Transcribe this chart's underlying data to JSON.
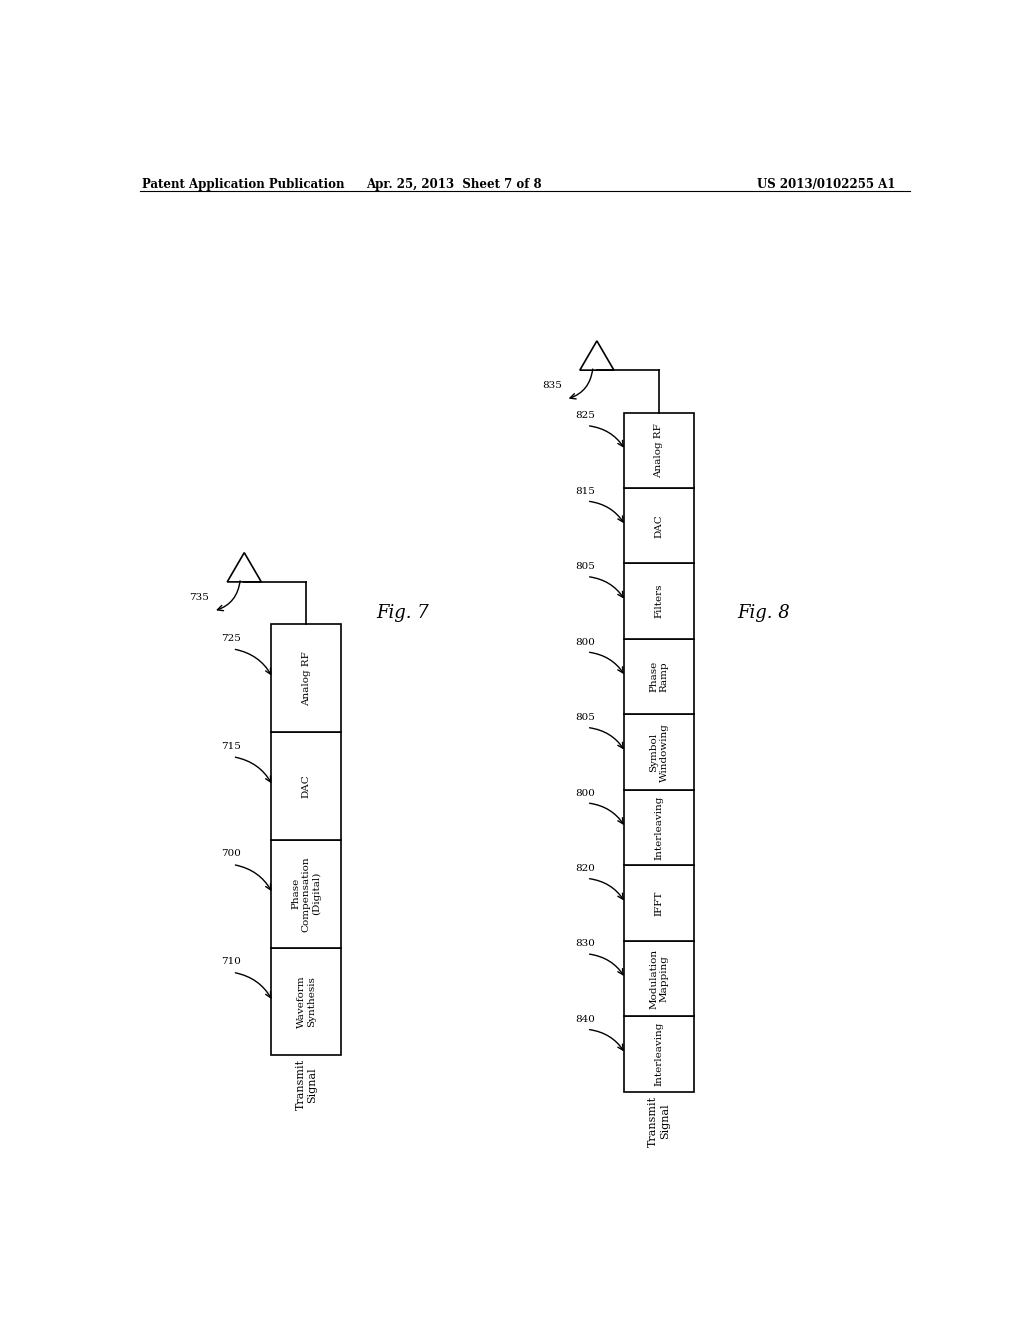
{
  "header_left": "Patent Application Publication",
  "header_center": "Apr. 25, 2013  Sheet 7 of 8",
  "header_right": "US 2013/0102255 A1",
  "fig7_title": "Fig. 7",
  "fig8_title": "Fig. 8",
  "fig7_boxes": [
    {
      "label": "Waveform\nSynthesis",
      "num": "710"
    },
    {
      "label": "Phase\nCompensation\n(Digital)",
      "num": "700"
    },
    {
      "label": "DAC",
      "num": "715"
    },
    {
      "label": "Analog RF",
      "num": "725"
    }
  ],
  "fig7_bottom_label": "Transmit\nSignal",
  "fig7_antenna_num": "735",
  "fig8_boxes": [
    {
      "label": "Interleaving",
      "num": "840"
    },
    {
      "label": "Modulation\nMapping",
      "num": "830"
    },
    {
      "label": "IFFT",
      "num": "820"
    },
    {
      "label": "Interleaving",
      "num": "800"
    },
    {
      "label": "Symbol\nWindowing",
      "num": "805"
    },
    {
      "label": "Phase\nRamp",
      "num": "800"
    },
    {
      "label": "Filters",
      "num": "805"
    },
    {
      "label": "DAC",
      "num": "815"
    },
    {
      "label": "Analog RF",
      "num": "825"
    }
  ],
  "fig8_bottom_label": "Transmit\nSignal",
  "fig8_antenna_num": "835",
  "bg_color": "#ffffff",
  "box_edge_color": "#000000",
  "box_face_color": "#ffffff",
  "text_color": "#000000",
  "line_color": "#000000"
}
